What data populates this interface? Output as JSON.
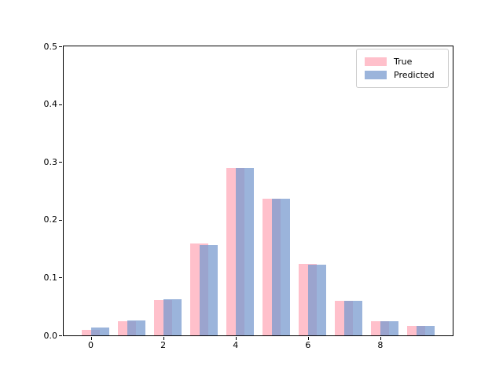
{
  "colors": {
    "background": "#ffffff",
    "axis": "#000000",
    "tick_label": "#000000",
    "legend_border": "#cccccc",
    "legend_background": "#ffffff"
  },
  "chart_data": {
    "type": "bar",
    "title": "",
    "xlabel": "",
    "ylabel": "",
    "categories": [
      "0",
      "1",
      "2",
      "3",
      "4",
      "5",
      "6",
      "7",
      "8",
      "9"
    ],
    "series": [
      {
        "name": "True",
        "color": "#ffc0cb",
        "alpha": 1.0,
        "offset": 0.0,
        "values": [
          0.01,
          0.024,
          0.061,
          0.159,
          0.29,
          0.236,
          0.123,
          0.06,
          0.025,
          0.016
        ]
      },
      {
        "name": "Predicted",
        "color": "#7a9bcf",
        "alpha": 0.75,
        "offset": 0.25,
        "values": [
          0.013,
          0.026,
          0.062,
          0.156,
          0.289,
          0.237,
          0.122,
          0.06,
          0.024,
          0.016
        ]
      }
    ],
    "bar_width": 0.5,
    "bars_overlap": true,
    "xlim": [
      -0.75,
      10.0
    ],
    "ylim": [
      0.0,
      0.5
    ],
    "xticks": [
      "0",
      "2",
      "4",
      "6",
      "8"
    ],
    "yticks": [
      "0.0",
      "0.1",
      "0.2",
      "0.3",
      "0.4",
      "0.5"
    ],
    "grid": false,
    "legend": {
      "position": "upper right",
      "entries": [
        "True",
        "Predicted"
      ]
    }
  }
}
